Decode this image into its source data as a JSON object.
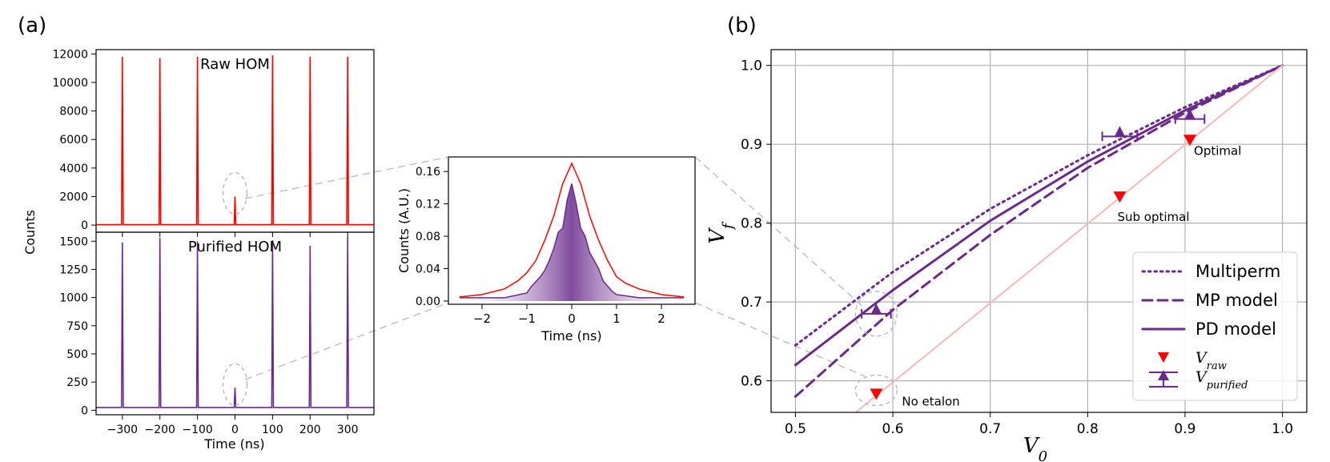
{
  "panel_labels": {
    "a": "(a)",
    "b": "(b)"
  },
  "colors": {
    "raw": "#ff0000",
    "purified": "#6a2a8c",
    "reference": "#f7b8b8",
    "grid": "#b0b0b0",
    "zoom_guides": "#c0c0c0"
  },
  "chart_data": [
    {
      "id": "raw-hom",
      "type": "line",
      "title": "Raw HOM",
      "ylabel": "Counts",
      "xlim": [
        -370,
        370
      ],
      "ylim": [
        -500,
        12300
      ],
      "yticks": [
        0,
        2000,
        4000,
        6000,
        8000,
        10000,
        12000
      ],
      "xticks": [
        -300,
        -200,
        -100,
        0,
        100,
        200,
        300
      ],
      "peaks": {
        "x": [
          -300,
          -200,
          -100,
          0,
          100,
          200,
          300
        ],
        "y": [
          11800,
          11700,
          11800,
          2000,
          11900,
          11800,
          11800
        ]
      },
      "series": [
        {
          "values_ref": "peaks",
          "color": "#ff0000"
        }
      ],
      "annotation": "dashed ellipse around the zero-delay peak"
    },
    {
      "id": "purified-hom",
      "type": "line",
      "title": "Purified HOM",
      "xlabel": "Time (ns)",
      "xlim": [
        -370,
        370
      ],
      "ylim": [
        -40,
        1580
      ],
      "yticks": [
        0,
        250,
        500,
        750,
        1000,
        1250,
        1500
      ],
      "xticks": [
        -300,
        -200,
        -100,
        0,
        100,
        200,
        300
      ],
      "xtick_labels": [
        "−300",
        "−200",
        "−100",
        "0",
        "100",
        "200",
        "300"
      ],
      "peaks": {
        "x": [
          -300,
          -200,
          -100,
          0,
          100,
          200,
          300
        ],
        "y": [
          1490,
          1530,
          1500,
          200,
          1510,
          1460,
          1540
        ]
      },
      "series": [
        {
          "values_ref": "peaks",
          "color": "#6a2a8c"
        }
      ],
      "annotation": "dashed ellipse around the zero-delay peak"
    },
    {
      "id": "zoom-inset",
      "type": "area",
      "xlabel": "Time (ns)",
      "ylabel": "Counts (A.U.)",
      "xlim": [
        -2.75,
        2.75
      ],
      "ylim": [
        -0.004,
        0.178
      ],
      "xticks": [
        -2,
        -1,
        0,
        1,
        2
      ],
      "xtick_labels": [
        "−2",
        "−1",
        "0",
        "1",
        "2"
      ],
      "yticks": [
        0.0,
        0.04,
        0.08,
        0.12,
        0.16
      ],
      "ytick_labels": [
        "0.00",
        "0.04",
        "0.08",
        "0.12",
        "0.16"
      ],
      "series": [
        {
          "color": "#ff0000",
          "x": [
            -2.5,
            -2.0,
            -1.5,
            -1.2,
            -1.0,
            -0.8,
            -0.6,
            -0.4,
            -0.2,
            0.0,
            0.2,
            0.4,
            0.6,
            0.8,
            1.0,
            1.2,
            1.5,
            2.0,
            2.5
          ],
          "y": [
            0.005,
            0.008,
            0.015,
            0.025,
            0.035,
            0.05,
            0.075,
            0.105,
            0.145,
            0.17,
            0.145,
            0.105,
            0.075,
            0.05,
            0.03,
            0.022,
            0.015,
            0.008,
            0.005
          ]
        },
        {
          "color": "#6a2a8c",
          "fill": true,
          "x": [
            -2.5,
            -1.5,
            -1.0,
            -0.9,
            -0.7,
            -0.6,
            -0.5,
            -0.4,
            -0.3,
            -0.2,
            -0.1,
            0.0,
            0.1,
            0.2,
            0.3,
            0.4,
            0.5,
            0.6,
            0.7,
            0.9,
            1.0,
            1.5,
            2.5
          ],
          "y": [
            0.004,
            0.004,
            0.01,
            0.018,
            0.03,
            0.038,
            0.05,
            0.065,
            0.085,
            0.09,
            0.125,
            0.145,
            0.12,
            0.09,
            0.08,
            0.06,
            0.05,
            0.04,
            0.025,
            0.012,
            0.008,
            0.004,
            0.004
          ]
        }
      ]
    },
    {
      "id": "visibility-plot",
      "type": "line",
      "xlabel": "V",
      "xlabel_sub": "0",
      "ylabel": "V",
      "ylabel_sub": "f",
      "xlim": [
        0.475,
        1.025
      ],
      "ylim": [
        0.56,
        1.02
      ],
      "grid": true,
      "xticks": [
        0.5,
        0.6,
        0.7,
        0.8,
        0.9,
        1.0
      ],
      "yticks": [
        0.6,
        0.7,
        0.8,
        0.9,
        1.0
      ],
      "tick_labels": [
        "0.5",
        "0.6",
        "0.7",
        "0.8",
        "0.9",
        "1.0"
      ],
      "legend_placement": "lower-right",
      "series": [
        {
          "name": "Multiperm",
          "style": "dotted",
          "color": "#6a2a8c",
          "x": [
            0.5,
            0.6,
            0.7,
            0.8,
            0.9,
            1.0
          ],
          "y": [
            0.645,
            0.738,
            0.818,
            0.886,
            0.947,
            1.0
          ]
        },
        {
          "name": "MP model",
          "style": "dashed",
          "color": "#6a2a8c",
          "x": [
            0.5,
            0.6,
            0.7,
            0.8,
            0.9,
            1.0
          ],
          "y": [
            0.58,
            0.69,
            0.785,
            0.87,
            0.94,
            1.0
          ]
        },
        {
          "name": "PD model",
          "style": "solid",
          "color": "#6a2a8c",
          "x": [
            0.5,
            0.6,
            0.7,
            0.8,
            0.9,
            1.0
          ],
          "y": [
            0.62,
            0.715,
            0.803,
            0.878,
            0.943,
            1.0
          ]
        },
        {
          "style": "solid",
          "color": "#f7b8b8",
          "x": [
            0.562,
            1.0
          ],
          "y": [
            0.56,
            1.0
          ]
        }
      ],
      "points": [
        {
          "name": "V",
          "name_sub": "raw",
          "marker": "triangle-down",
          "color": "#ff0000",
          "x": [
            0.583,
            0.833,
            0.905
          ],
          "y": [
            0.583,
            0.833,
            0.905
          ]
        },
        {
          "name": "V",
          "name_sub": "purified",
          "marker": "triangle-up",
          "color": "#6a2a8c",
          "x": [
            0.583,
            0.833,
            0.905
          ],
          "y": [
            0.685,
            0.91,
            0.932
          ],
          "xerr": [
            0.015,
            0.018,
            0.015
          ]
        }
      ],
      "annotations": [
        "No etalon",
        "Sub optimal",
        "Optimal"
      ]
    }
  ]
}
